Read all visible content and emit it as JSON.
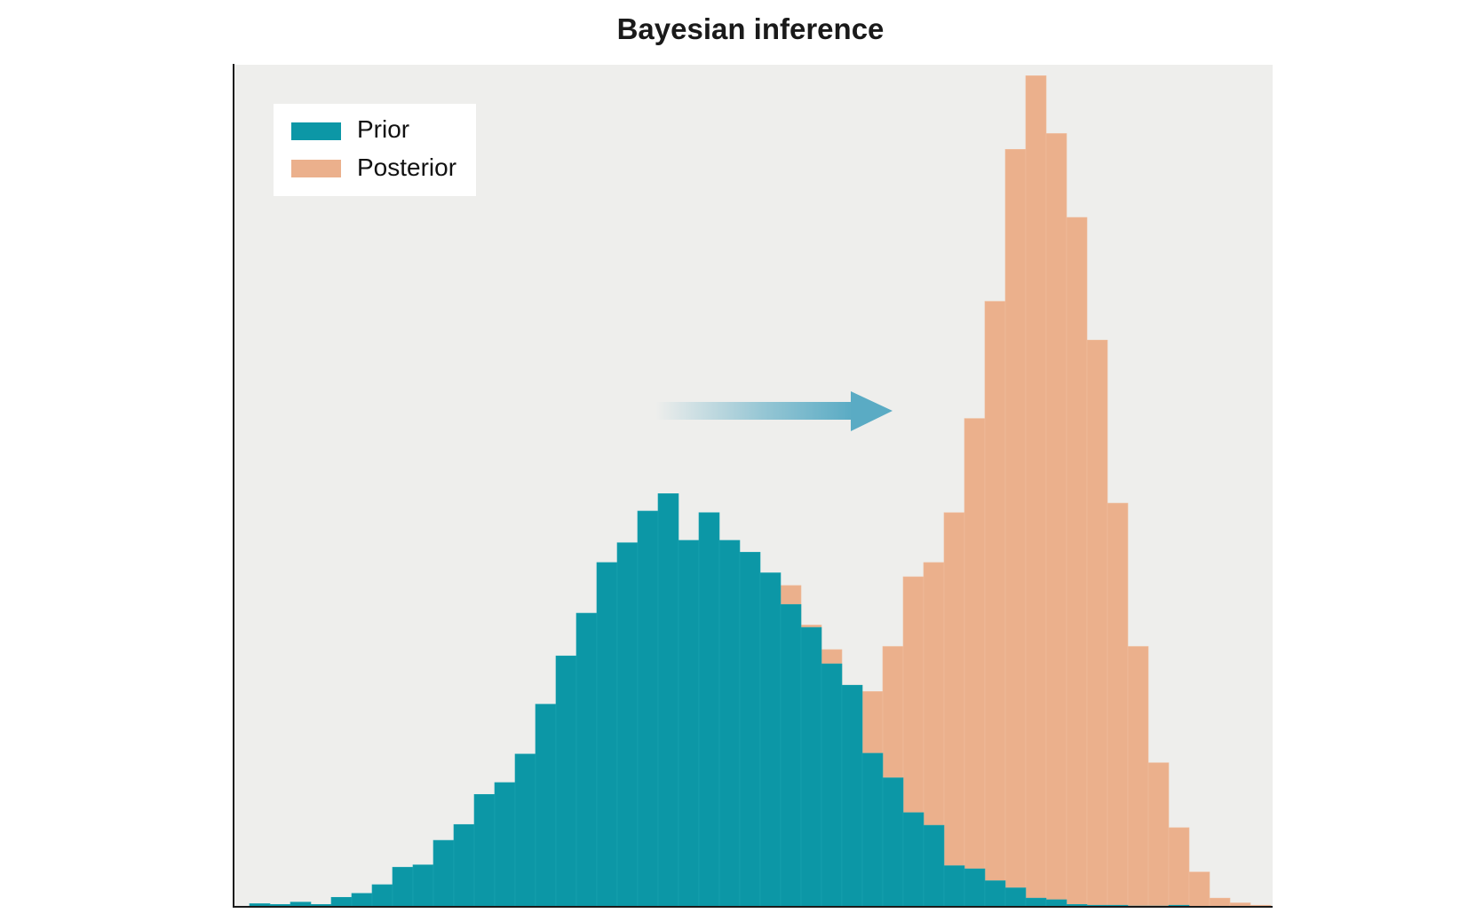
{
  "chart_data": {
    "type": "bar",
    "title": "Bayesian inference",
    "xlabel": "",
    "ylabel": "",
    "ylim": [
      0,
      1000
    ],
    "grid": false,
    "legend_position": "top-left",
    "bin_count": 50,
    "annotation": "arrow pointing from prior toward posterior",
    "series": [
      {
        "name": "Prior",
        "color": "#0c97a6",
        "values": [
          4,
          3,
          6,
          3,
          12,
          17,
          28,
          50,
          53,
          84,
          104,
          142,
          157,
          193,
          256,
          317,
          371,
          435,
          460,
          500,
          522,
          463,
          498,
          463,
          448,
          422,
          382,
          353,
          307,
          280,
          194,
          163,
          119,
          103,
          52,
          48,
          33,
          24,
          11,
          9,
          3,
          2,
          2,
          1,
          1,
          2,
          0,
          0,
          0,
          0
        ]
      },
      {
        "name": "Posterior",
        "color": "#ebb08c",
        "values": [
          0,
          0,
          0,
          0,
          0,
          0,
          0,
          0,
          0,
          0,
          0,
          0,
          0,
          0,
          0,
          0,
          0,
          0,
          0,
          0,
          0,
          0,
          0,
          0,
          0,
          0,
          406,
          356,
          325,
          280,
          272,
          329,
          417,
          435,
          498,
          617,
          765,
          957,
          1050,
          977,
          871,
          716,
          510,
          329,
          182,
          100,
          44,
          11,
          5,
          2
        ]
      }
    ]
  },
  "legend": {
    "prior_label": "Prior",
    "posterior_label": "Posterior"
  }
}
